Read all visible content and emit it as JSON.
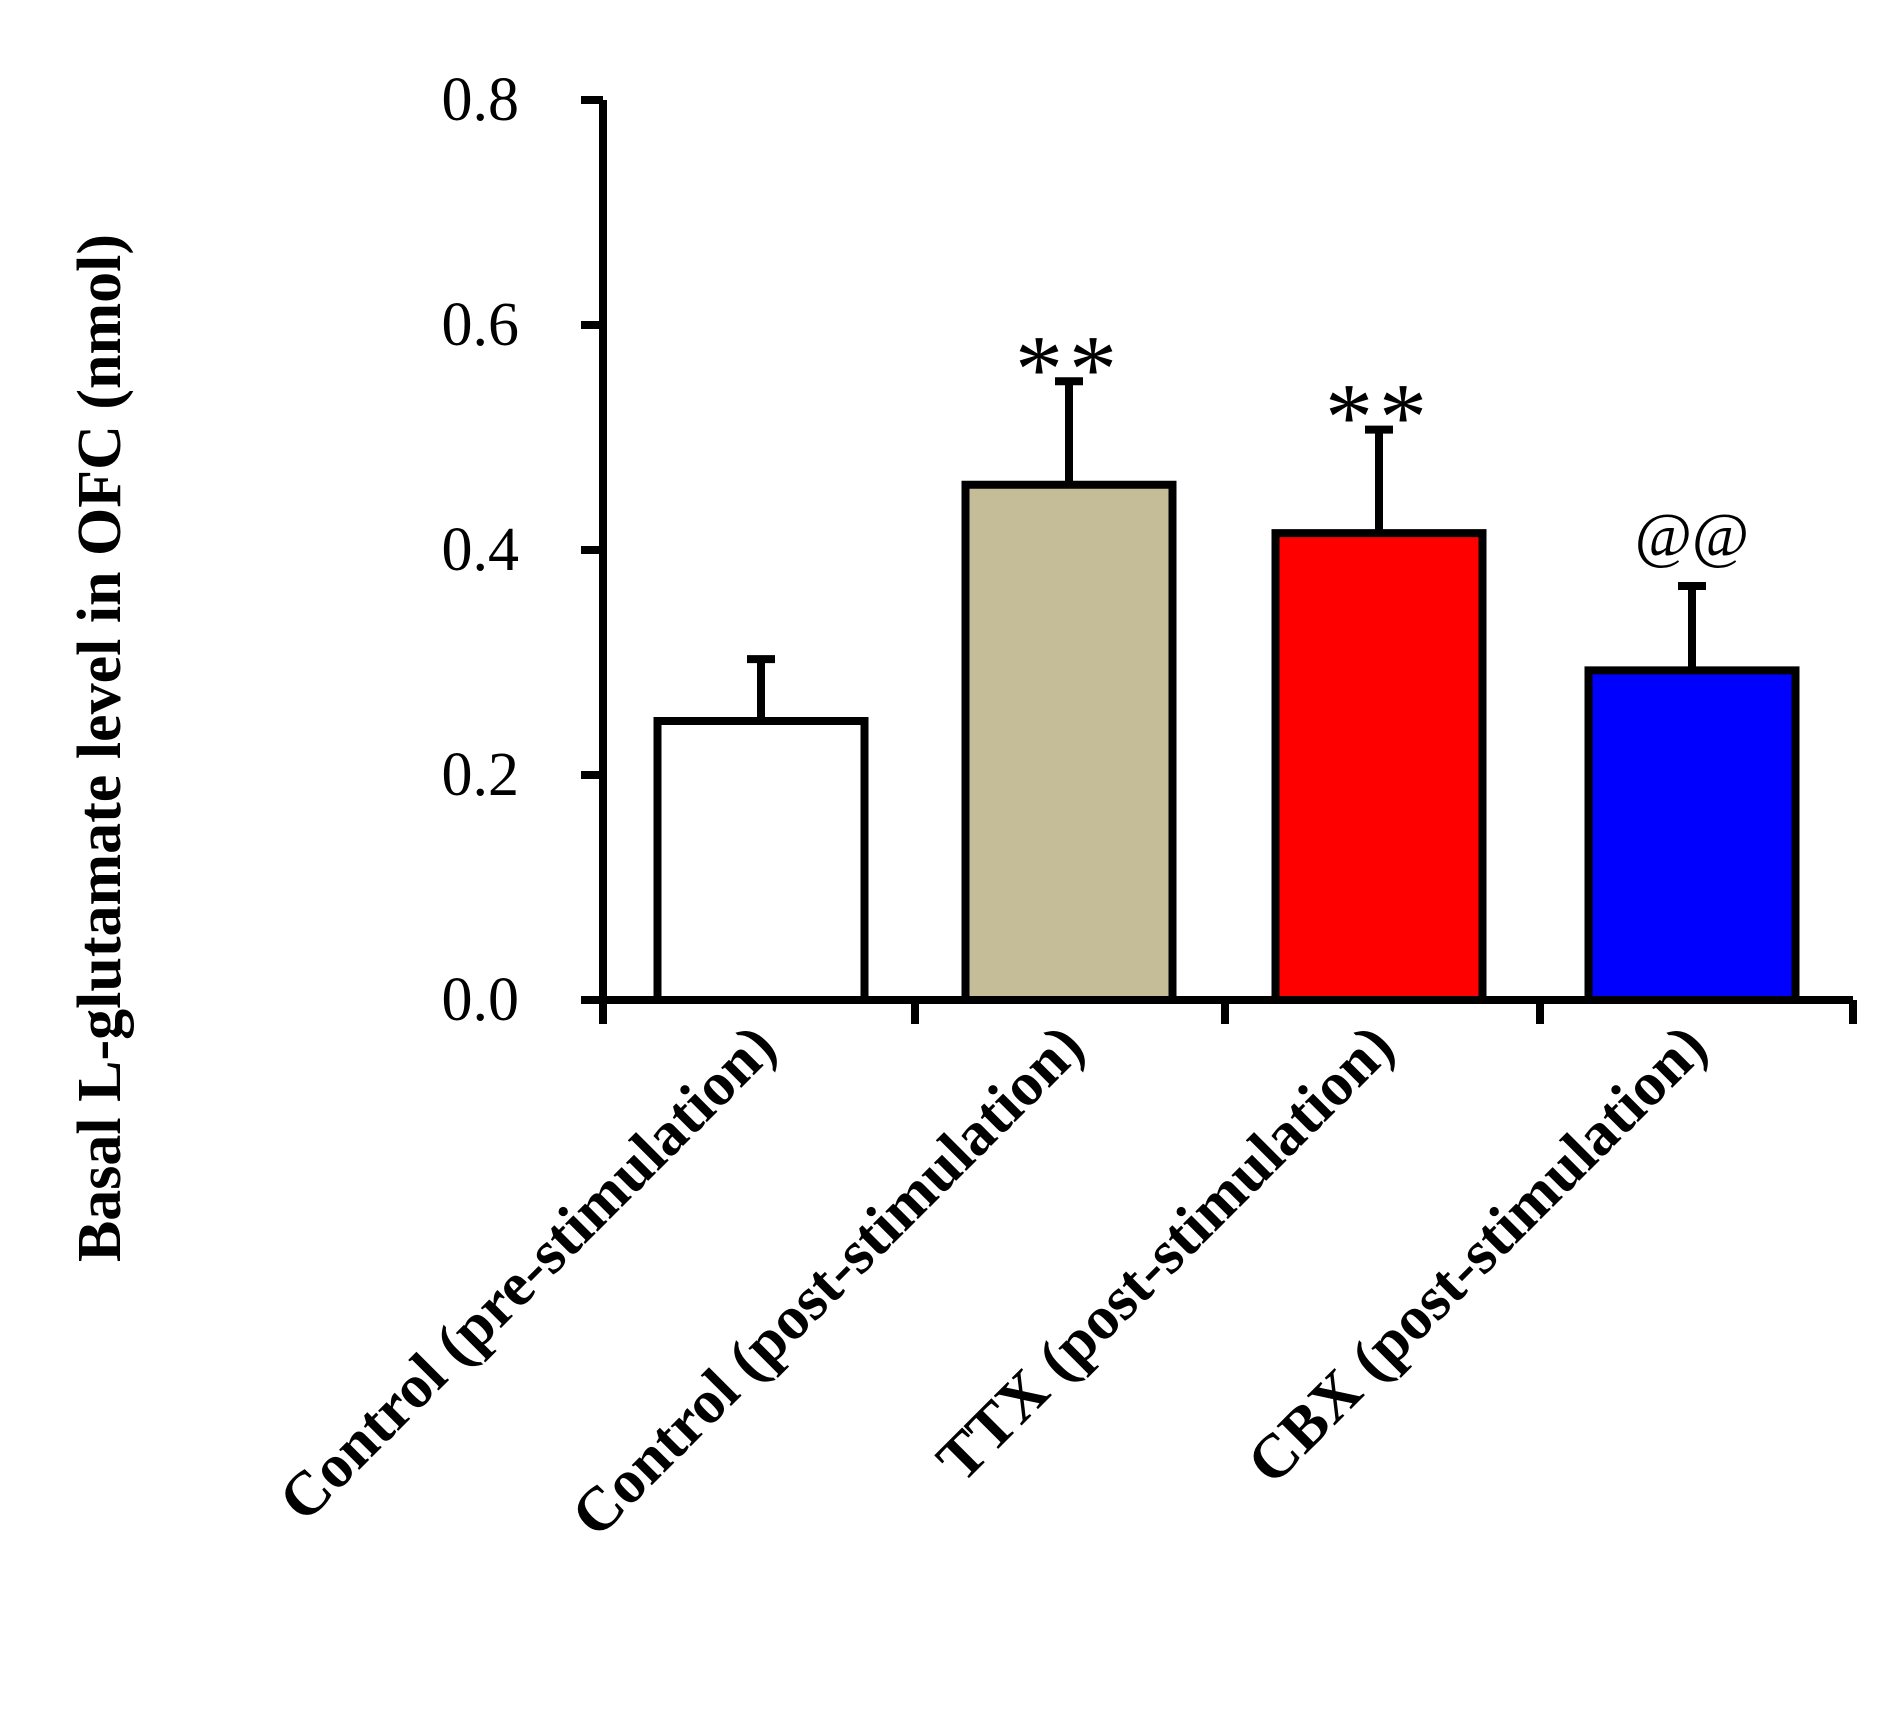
{
  "chart_data": {
    "type": "bar",
    "title": "",
    "ylabel": "Basal L-glutamate level in OFC (nmol)",
    "xlabel": "",
    "ylim": [
      0,
      0.8
    ],
    "yticks": [
      "0.0",
      "0.2",
      "0.4",
      "0.6",
      "0.8"
    ],
    "categories": [
      "Control (pre-stimulation)",
      "Control (post-stimulation)",
      "TTX  (post-stimulation)",
      "CBX  (post-stimulation)"
    ],
    "values": [
      0.248,
      0.458,
      0.415,
      0.293
    ],
    "errors": [
      0.055,
      0.092,
      0.092,
      0.075
    ],
    "colors": [
      "#ffffff",
      "#c4bd97",
      "#ff0000",
      "#0000ff"
    ],
    "annotations": [
      "",
      "**",
      "**",
      "@@"
    ],
    "grid": false,
    "legend": "none"
  }
}
